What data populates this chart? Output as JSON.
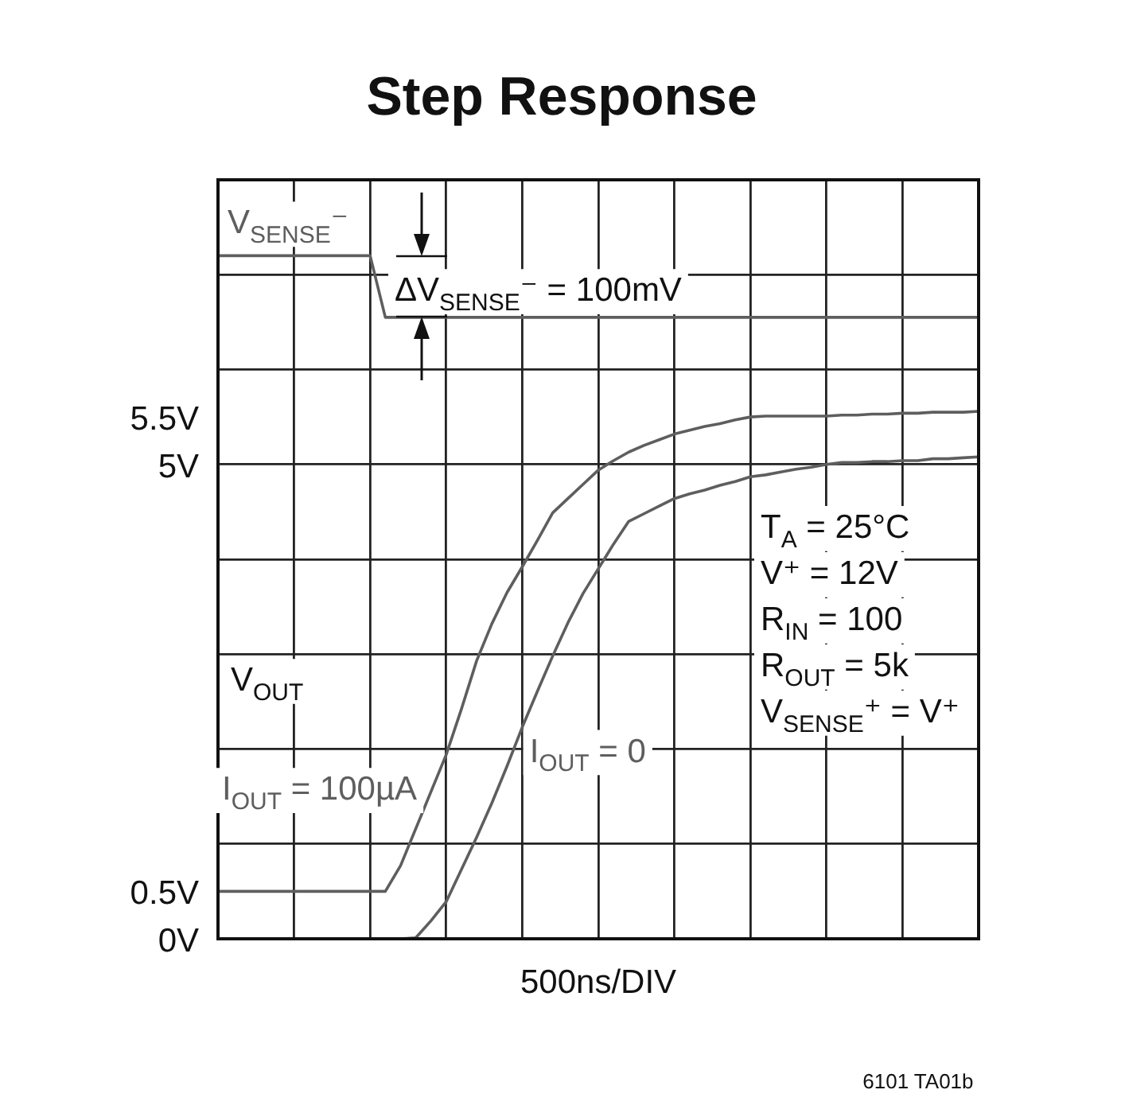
{
  "chart_data": {
    "type": "line",
    "title": "Step Response",
    "xlabel": "500ns/DIV",
    "ylabel": "V$_{OUT}$",
    "categories": [
      null,
      null,
      null,
      null,
      null,
      null,
      null,
      null,
      null,
      null,
      null,
      null,
      null,
      null,
      null,
      null,
      null,
      null,
      null,
      null,
      null,
      null,
      null,
      null,
      null,
      null,
      null,
      null,
      null,
      null,
      null,
      null,
      null,
      null,
      null,
      null,
      null,
      null,
      null,
      null,
      null,
      null,
      null,
      null,
      null,
      null,
      null,
      null,
      null,
      null,
      null
    ],
    "ylim": [
      0,
      8
    ],
    "yticks": [
      {
        "value": 0,
        "label": "0V"
      },
      {
        "value": 0.5,
        "label": "0.5V"
      },
      {
        "value": 1,
        "label": null
      },
      {
        "value": 2,
        "label": null
      },
      {
        "value": 3,
        "label": null
      },
      {
        "value": 4,
        "label": null
      },
      {
        "value": 5,
        "label": "5V"
      },
      {
        "value": 5.5,
        "label": "5.5V"
      },
      {
        "value": 6,
        "label": null
      },
      {
        "value": 7,
        "label": null
      },
      {
        "value": 8,
        "label": null
      }
    ],
    "tick_labels": "y",
    "grid": true,
    "legend": false,
    "series": [
      {
        "name": "V$_{SENSE}$⁻",
        "color": "#5e5e5e",
        "values": [
          7.2,
          7.2,
          7.2,
          7.2,
          7.2,
          7.2,
          7.2,
          7.2,
          7.2,
          7.2,
          7.2,
          6.55,
          6.55,
          6.55,
          6.55,
          6.55,
          6.55,
          6.55,
          6.55,
          6.55,
          6.55,
          6.55,
          6.55,
          6.55,
          6.55,
          6.55,
          6.55,
          6.55,
          6.55,
          6.55,
          6.55,
          6.55,
          6.55,
          6.55,
          6.55,
          6.55,
          6.55,
          6.55,
          6.55,
          6.55,
          6.55,
          6.55,
          6.55,
          6.55,
          6.55,
          6.55,
          6.55,
          6.55,
          6.55,
          6.55,
          6.55
        ]
      },
      {
        "name": "I$_{OUT}$ = 100µA",
        "color": "#5e5e5e",
        "values": [
          0.5,
          0.5,
          0.5,
          0.5,
          0.5,
          0.5,
          0.5,
          0.5,
          0.5,
          0.5,
          0.5,
          0.5,
          0.77,
          1.16,
          1.55,
          1.94,
          2.42,
          2.93,
          3.32,
          3.65,
          3.92,
          4.2,
          4.49,
          4.64,
          4.79,
          4.94,
          5.04,
          5.13,
          5.2,
          5.26,
          5.32,
          5.36,
          5.4,
          5.43,
          5.47,
          5.5,
          5.51,
          5.51,
          5.51,
          5.51,
          5.51,
          5.52,
          5.52,
          5.53,
          5.53,
          5.54,
          5.54,
          5.55,
          5.55,
          5.55,
          5.56
        ]
      },
      {
        "name": "I$_{OUT}$ = 0",
        "color": "#5e5e5e",
        "values": [
          0,
          0,
          0,
          0,
          0,
          0,
          0,
          0,
          0,
          0,
          0,
          0,
          0,
          0.01,
          0.19,
          0.39,
          0.73,
          1.07,
          1.43,
          1.82,
          2.23,
          2.61,
          2.98,
          3.33,
          3.64,
          3.9,
          4.16,
          4.4,
          4.48,
          4.56,
          4.64,
          4.69,
          4.73,
          4.78,
          4.82,
          4.87,
          4.89,
          4.92,
          4.95,
          4.97,
          5.0,
          5.02,
          5.02,
          5.03,
          5.03,
          5.04,
          5.04,
          5.06,
          5.06,
          5.07,
          5.08
        ]
      }
    ],
    "annotations": [
      "ΔV$_{SENSE}$⁻ = 100mV",
      "T$_{A}$ = 25°C",
      "V⁺ = 12V",
      "R$_{IN}$ = 100",
      "R$_{OUT}$ = 5k",
      "V$_{SENSE}$⁺ = V⁺",
      "6101 TA01b"
    ]
  }
}
